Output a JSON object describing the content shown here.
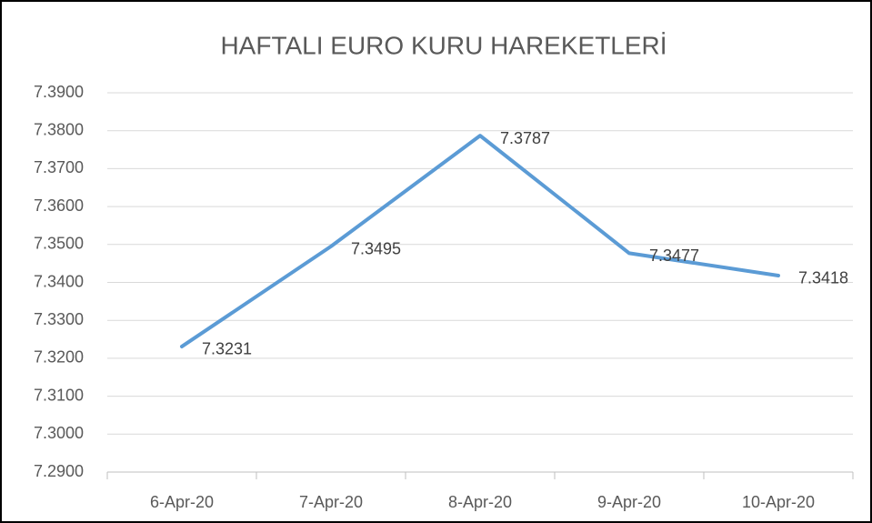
{
  "chart_data": {
    "type": "line",
    "title": "HAFTALI EURO KURU HAREKETLERİ",
    "categories": [
      "6-Apr-20",
      "7-Apr-20",
      "8-Apr-20",
      "9-Apr-20",
      "10-Apr-20"
    ],
    "values": [
      7.3231,
      7.3495,
      7.3787,
      7.3477,
      7.3418
    ],
    "color": "#5b9bd5",
    "ylim": [
      7.29,
      7.39
    ],
    "yticks": [
      {
        "value": 7.29,
        "label": "7.2900"
      },
      {
        "value": 7.3,
        "label": "7.3000"
      },
      {
        "value": 7.31,
        "label": "7.3100"
      },
      {
        "value": 7.32,
        "label": "7.3200"
      },
      {
        "value": 7.33,
        "label": "7.3300"
      },
      {
        "value": 7.34,
        "label": "7.3400"
      },
      {
        "value": 7.35,
        "label": "7.3500"
      },
      {
        "value": 7.36,
        "label": "7.3600"
      },
      {
        "value": 7.37,
        "label": "7.3700"
      },
      {
        "value": 7.38,
        "label": "7.3800"
      },
      {
        "value": 7.39,
        "label": "7.3900"
      }
    ],
    "grid": true
  }
}
